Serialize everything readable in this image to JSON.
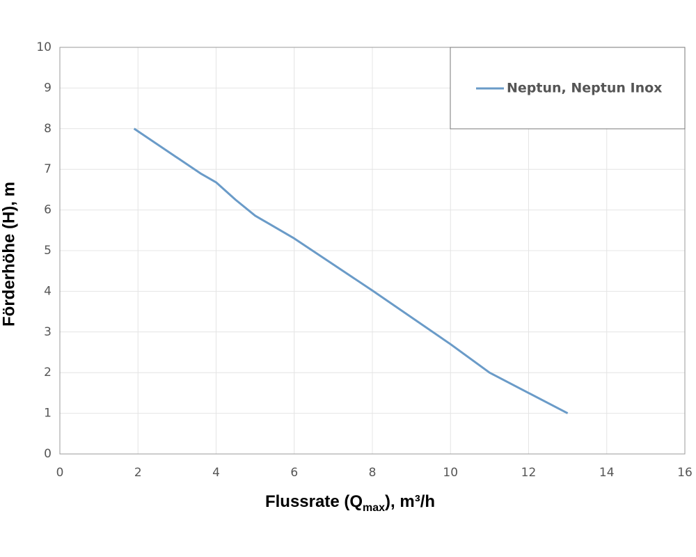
{
  "chart_data": {
    "type": "line",
    "x_label": [
      "Flussrate (Q",
      "max",
      "), m³/h"
    ],
    "y_label": "Förderhöhe (H), m",
    "x": [
      1.9,
      3.6,
      4.0,
      4.5,
      5.0,
      6.0,
      8.0,
      10.0,
      11.0,
      12.0,
      13.0
    ],
    "series": [
      {
        "name": "Neptun, Neptun Inox",
        "color": "#6a9bc8",
        "values": [
          8.0,
          6.9,
          6.68,
          6.25,
          5.86,
          5.3,
          4.02,
          2.7,
          2.0,
          1.5,
          1.0
        ]
      }
    ],
    "xlim": [
      0,
      16
    ],
    "xticks": [
      0,
      2,
      4,
      6,
      8,
      10,
      12,
      14,
      16
    ],
    "ylim": [
      0,
      10
    ],
    "yticks": [
      0,
      1,
      2,
      3,
      4,
      5,
      6,
      7,
      8,
      9,
      10
    ],
    "grid": true,
    "legend": "top-right"
  }
}
